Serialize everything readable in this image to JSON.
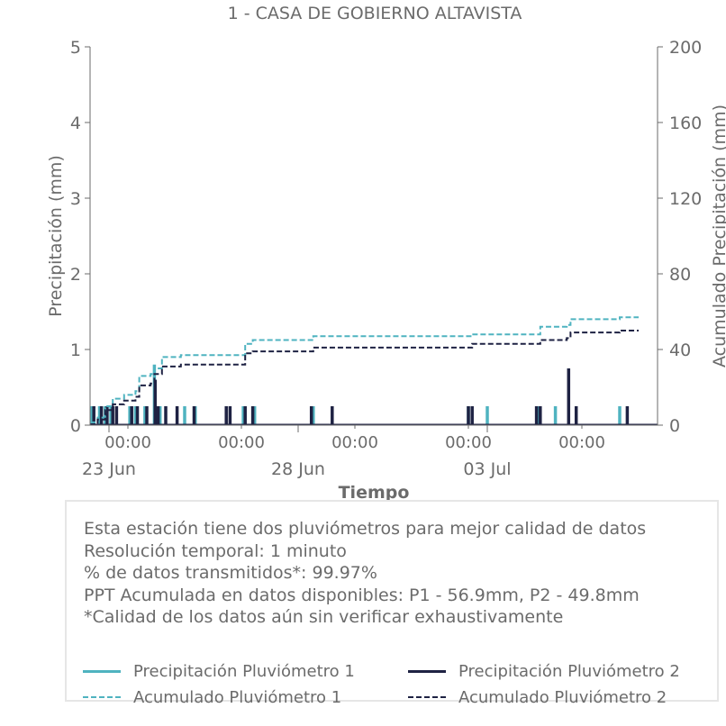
{
  "chart_data": {
    "type": "bar+line",
    "title": "1 - CASA DE GOBIERNO ALTAVISTA",
    "xlabel": "Tiempo",
    "ylabel_left": "Precipitación (mm)",
    "ylabel_right": "Acumulado Precipitación (mm)",
    "ylim_left": [
      0,
      5
    ],
    "ylim_right": [
      0,
      200
    ],
    "yticks_left": [
      "0",
      "1",
      "2",
      "3",
      "4",
      "5"
    ],
    "yticks_right": [
      "0",
      "40",
      "80",
      "120",
      "160",
      "200"
    ],
    "xlim_days": [
      22.0,
      37.0
    ],
    "xticks_minor_labels": [
      "00:00",
      "00:00",
      "00:00",
      "00:00",
      "00:00"
    ],
    "xticks_minor_days": [
      23.0,
      26.0,
      29.0,
      32.0,
      35.0
    ],
    "xticks_major_labels": [
      "23 Jun",
      "28 Jun",
      "03 Jul"
    ],
    "xticks_major_days": [
      22.5,
      27.5,
      32.5
    ],
    "colors": {
      "p1": "#4fb3c0",
      "p2": "#1e2243",
      "axis": "#6b6b6b"
    },
    "series": [
      {
        "name": "Precipitación Pluviómetro 1",
        "kind": "bar",
        "axis": "left",
        "color": "#4fb3c0",
        "points": [
          [
            22.05,
            0.25
          ],
          [
            22.25,
            0.25
          ],
          [
            22.4,
            0.25
          ],
          [
            22.55,
            0.25
          ],
          [
            23.05,
            0.25
          ],
          [
            23.2,
            0.25
          ],
          [
            23.45,
            0.25
          ],
          [
            23.7,
            0.8
          ],
          [
            23.85,
            0.25
          ],
          [
            24.5,
            0.25
          ],
          [
            24.78,
            0.25
          ],
          [
            26.05,
            0.25
          ],
          [
            26.35,
            0.25
          ],
          [
            27.9,
            0.25
          ],
          [
            32.0,
            0.25
          ],
          [
            32.5,
            0.25
          ],
          [
            33.85,
            0.25
          ],
          [
            34.3,
            0.25
          ],
          [
            36.0,
            0.25
          ]
        ]
      },
      {
        "name": "Precipitación Pluviómetro 2",
        "kind": "bar",
        "axis": "left",
        "color": "#1e2243",
        "points": [
          [
            22.1,
            0.25
          ],
          [
            22.3,
            0.25
          ],
          [
            22.45,
            0.25
          ],
          [
            22.6,
            0.25
          ],
          [
            22.7,
            0.25
          ],
          [
            23.1,
            0.25
          ],
          [
            23.25,
            0.25
          ],
          [
            23.5,
            0.25
          ],
          [
            23.72,
            0.6
          ],
          [
            23.8,
            0.25
          ],
          [
            24.0,
            0.25
          ],
          [
            24.3,
            0.25
          ],
          [
            24.75,
            0.25
          ],
          [
            25.6,
            0.25
          ],
          [
            25.7,
            0.25
          ],
          [
            26.1,
            0.25
          ],
          [
            26.3,
            0.25
          ],
          [
            27.85,
            0.25
          ],
          [
            28.4,
            0.25
          ],
          [
            32.0,
            0.25
          ],
          [
            32.1,
            0.25
          ],
          [
            33.8,
            0.25
          ],
          [
            33.9,
            0.25
          ],
          [
            34.65,
            0.75
          ],
          [
            34.85,
            0.25
          ],
          [
            36.2,
            0.25
          ]
        ]
      },
      {
        "name": "Acumulado Pluviómetro 1",
        "kind": "step",
        "style": "dashed",
        "axis": "right",
        "color": "#4fb3c0",
        "points": [
          [
            22.0,
            1.5
          ],
          [
            22.2,
            4
          ],
          [
            22.4,
            10
          ],
          [
            22.6,
            14
          ],
          [
            22.9,
            16
          ],
          [
            23.2,
            18
          ],
          [
            23.3,
            26
          ],
          [
            23.6,
            27
          ],
          [
            23.7,
            30
          ],
          [
            23.9,
            36
          ],
          [
            24.4,
            37
          ],
          [
            26.0,
            37
          ],
          [
            26.1,
            43
          ],
          [
            26.3,
            45
          ],
          [
            27.8,
            45
          ],
          [
            27.9,
            47
          ],
          [
            32.0,
            47
          ],
          [
            32.1,
            48
          ],
          [
            33.8,
            48
          ],
          [
            33.9,
            52
          ],
          [
            34.6,
            53
          ],
          [
            34.7,
            56
          ],
          [
            35.9,
            56
          ],
          [
            36.0,
            57
          ],
          [
            36.5,
            57
          ]
        ]
      },
      {
        "name": "Acumulado Pluviómetro 2",
        "kind": "step",
        "style": "dashed",
        "axis": "right",
        "color": "#1e2243",
        "points": [
          [
            22.0,
            0.5
          ],
          [
            22.2,
            3
          ],
          [
            22.4,
            8
          ],
          [
            22.6,
            11
          ],
          [
            22.9,
            13
          ],
          [
            23.2,
            15
          ],
          [
            23.3,
            21
          ],
          [
            23.6,
            22
          ],
          [
            23.7,
            27
          ],
          [
            23.9,
            31
          ],
          [
            24.4,
            32
          ],
          [
            26.0,
            32
          ],
          [
            26.1,
            38
          ],
          [
            26.3,
            39
          ],
          [
            27.8,
            39
          ],
          [
            27.9,
            41
          ],
          [
            32.0,
            41
          ],
          [
            32.1,
            43
          ],
          [
            33.8,
            43
          ],
          [
            33.9,
            45
          ],
          [
            34.6,
            46
          ],
          [
            34.7,
            49
          ],
          [
            35.9,
            49
          ],
          [
            36.0,
            50
          ],
          [
            36.5,
            50
          ]
        ]
      }
    ]
  },
  "info": {
    "lines": [
      "Esta estación tiene dos pluviómetros para mejor calidad de datos",
      "Resolución temporal: 1 minuto",
      "% de datos transmitidos*: 99.97%",
      "PPT Acumulada en datos disponibles: P1 - 56.9mm, P2 - 49.8mm",
      "*Calidad de los datos aún sin verificar exhaustivamente"
    ]
  },
  "legend": {
    "p1_bar": "Precipitación Pluviómetro 1",
    "p2_bar": "Precipitación Pluviómetro 2",
    "p1_acc": "Acumulado Pluviómetro 1",
    "p2_acc": "Acumulado Pluviómetro 2"
  }
}
